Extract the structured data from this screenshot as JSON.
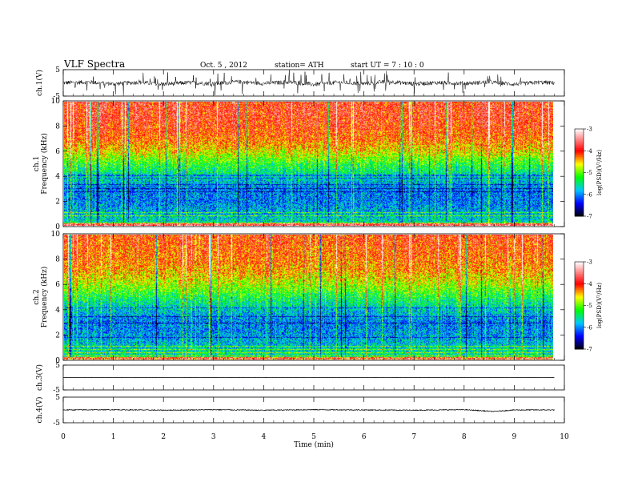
{
  "header": {
    "title": "VLF  Spectra",
    "date": "Oct. 5  , 2012",
    "station": "station= ATH",
    "start": "start  UT  =   7  : 10 : 0"
  },
  "colors": {
    "spectrogram_palette": [
      "#000000",
      "#0000ff",
      "#00c8ff",
      "#00ff00",
      "#ffff00",
      "#ff0000",
      "#ffffff"
    ]
  },
  "chart_data": [
    {
      "type": "line",
      "name": "ch1-waveform",
      "ylabel": "ch.1(V)",
      "ylim": [
        -5,
        5
      ],
      "yticks": [
        5,
        -5
      ],
      "x": [
        0,
        0.5,
        1,
        1.5,
        2,
        2.5,
        3,
        3.5,
        4,
        4.5,
        5,
        5.5,
        6,
        6.5,
        7,
        7.5,
        8,
        8.5,
        9,
        9.5,
        9.8
      ],
      "y": [
        0,
        0.3,
        -0.4,
        0.2,
        -0.5,
        0.1,
        -0.3,
        0.4,
        -0.2,
        0.3,
        -0.6,
        0.2,
        -0.3,
        0.5,
        -0.4,
        0.1,
        -0.2,
        0.3,
        -0.5,
        0.2,
        0
      ]
    },
    {
      "type": "heatmap",
      "name": "ch1-spectrogram",
      "ylabel": "ch.1\nFrequency (kHz)",
      "ylim": [
        0,
        10
      ],
      "yticks": [
        0,
        2,
        4,
        6,
        8,
        10
      ],
      "colorbar": {
        "label": "log(PSD)(V²/Hz)",
        "ticks": [
          -3,
          -4,
          -5,
          -6,
          -7
        ],
        "range": [
          -7,
          -3
        ]
      },
      "profile_kHz": [
        0,
        1,
        2,
        3,
        4,
        5,
        6,
        7,
        8,
        9,
        10
      ],
      "profile_logPSD": [
        -5.5,
        -5.8,
        -6.0,
        -6.0,
        -5.6,
        -5.2,
        -4.6,
        -4.2,
        -4.0,
        -3.9,
        -3.9
      ]
    },
    {
      "type": "heatmap",
      "name": "ch2-spectrogram",
      "ylabel": "ch.2\nFrequency (kHz)",
      "ylim": [
        0,
        10
      ],
      "yticks": [
        0,
        2,
        4,
        6,
        8,
        10
      ],
      "colorbar": {
        "label": "log(PSD)(V²/Hz)",
        "ticks": [
          -3,
          -4,
          -5,
          -6,
          -7
        ],
        "range": [
          -7,
          -3
        ]
      },
      "profile_kHz": [
        0,
        1,
        2,
        3,
        4,
        5,
        6,
        7,
        8,
        9,
        10
      ],
      "profile_logPSD": [
        -5.4,
        -5.7,
        -5.9,
        -6.0,
        -5.7,
        -5.3,
        -4.8,
        -4.4,
        -4.2,
        -4.1,
        -4.0
      ]
    },
    {
      "type": "line",
      "name": "ch3-waveform",
      "ylabel": "ch.3(V)",
      "ylim": [
        -5,
        5
      ],
      "yticks": [
        5,
        -5
      ],
      "x": [
        0,
        9.8
      ],
      "y": [
        0,
        0
      ]
    },
    {
      "type": "line",
      "name": "ch4-waveform",
      "ylabel": "ch.4(V)",
      "ylim": [
        -5,
        5
      ],
      "yticks": [
        5,
        -5
      ],
      "x": [
        0,
        1,
        2,
        3,
        4,
        5,
        6,
        7,
        8,
        8.6,
        9,
        9.8
      ],
      "y": [
        0,
        0.1,
        -0.1,
        0.1,
        -0.1,
        0.1,
        0,
        -0.1,
        0.1,
        -0.6,
        0,
        0
      ]
    }
  ],
  "xaxis": {
    "label": "Time  (min)",
    "xlim": [
      0,
      10
    ],
    "ticks": [
      0,
      1,
      2,
      3,
      4,
      5,
      6,
      7,
      8,
      9,
      10
    ],
    "data_end": 9.8
  }
}
